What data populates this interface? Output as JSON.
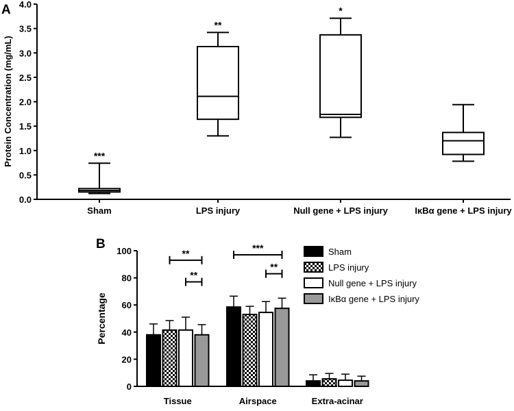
{
  "panel_a": {
    "label": "A",
    "chart_data": {
      "type": "box",
      "ylabel": "Protein Concentration (mg/mL)",
      "ylim": [
        0,
        4
      ],
      "yticks": [
        "0.0",
        "0.5",
        "1.0",
        "1.5",
        "2.0",
        "2.5",
        "3.0",
        "3.5",
        "4.0"
      ],
      "categories": [
        "Sham",
        "LPS injury",
        "Null gene + LPS injury",
        "IκBα gene + LPS injury"
      ],
      "boxes": [
        {
          "min": 0.12,
          "q1": 0.15,
          "median": 0.18,
          "q3": 0.22,
          "max": 0.74,
          "sig": "***"
        },
        {
          "min": 1.3,
          "q1": 1.64,
          "median": 2.11,
          "q3": 3.13,
          "max": 3.42,
          "sig": "**"
        },
        {
          "min": 1.27,
          "q1": 1.68,
          "median": 1.74,
          "q3": 3.37,
          "max": 3.71,
          "sig": "*"
        },
        {
          "min": 0.78,
          "q1": 0.92,
          "median": 1.2,
          "q3": 1.37,
          "max": 1.94,
          "sig": ""
        }
      ]
    }
  },
  "panel_b": {
    "label": "B",
    "chart_data": {
      "type": "bar",
      "ylabel": "Percentage",
      "ylim": [
        0,
        100
      ],
      "yticks": [
        "0",
        "20",
        "40",
        "60",
        "80",
        "100"
      ],
      "categories": [
        "Tissue",
        "Airspace",
        "Extra-acinar"
      ],
      "series": [
        {
          "name": "Sham",
          "pattern": "solid-black",
          "values": [
            38,
            58.5,
            4
          ],
          "errors": [
            8,
            8,
            4.5
          ]
        },
        {
          "name": "LPS injury",
          "pattern": "checker",
          "values": [
            41.5,
            53,
            5.5
          ],
          "errors": [
            7,
            6,
            4
          ]
        },
        {
          "name": "Null gene + LPS injury",
          "pattern": "white",
          "values": [
            41.5,
            54.5,
            4.5
          ],
          "errors": [
            9.5,
            8,
            4.5
          ]
        },
        {
          "name": "IκBα gene + LPS injury",
          "pattern": "gray",
          "values": [
            38,
            57.5,
            4
          ],
          "errors": [
            7.5,
            7.5,
            3.5
          ]
        }
      ],
      "brackets": [
        {
          "category": 0,
          "from_series": 1,
          "to_series": 3,
          "y": 93,
          "label": "**"
        },
        {
          "category": 0,
          "from_series": 2,
          "to_series": 3,
          "y": 77,
          "label": "**"
        },
        {
          "category": 1,
          "from_series": 0,
          "to_series": 3,
          "y": 97,
          "label": "***"
        },
        {
          "category": 1,
          "from_series": 2,
          "to_series": 3,
          "y": 83,
          "label": "**"
        }
      ],
      "legend_position": "right"
    }
  }
}
